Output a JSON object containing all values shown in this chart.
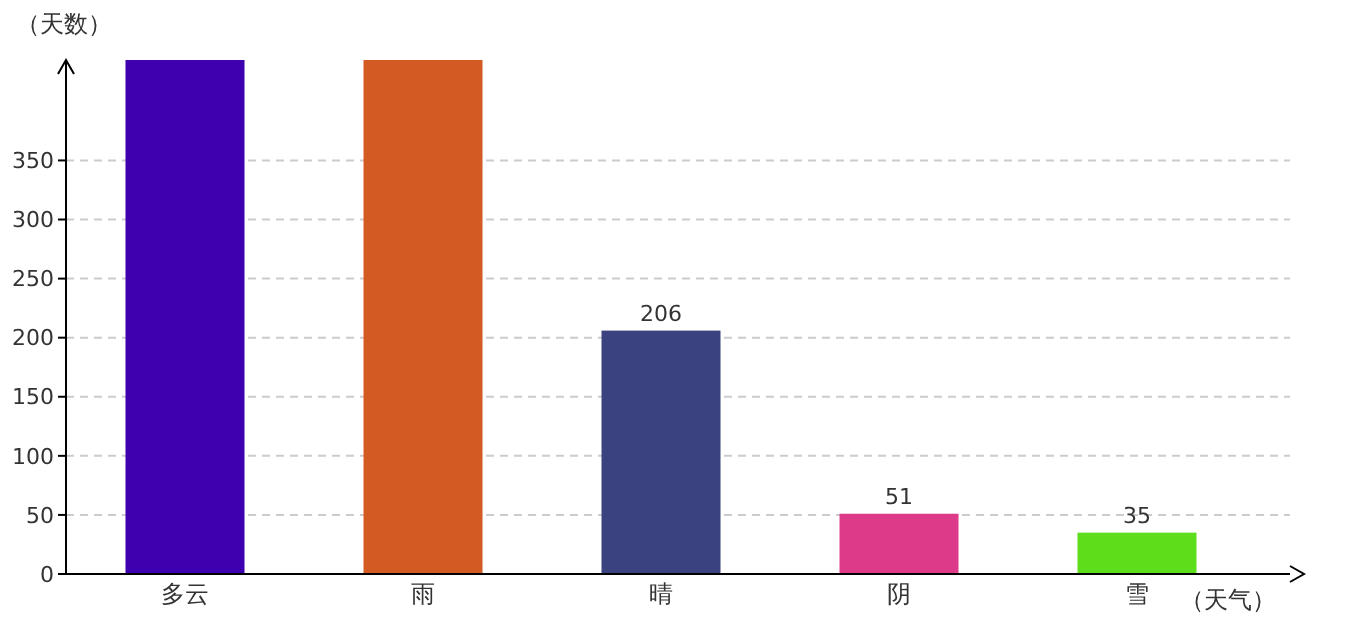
{
  "chart_data": {
    "type": "bar",
    "xlabel": "（天气）",
    "ylabel": "（天数）",
    "categories": [
      "多云",
      "雨",
      "晴",
      "阴",
      "雪"
    ],
    "values": [
      435,
      435,
      206,
      51,
      35
    ],
    "colors": [
      "#3f00b0",
      "#d35a22",
      "#3b4280",
      "#de3a8a",
      "#5edd1a"
    ],
    "value_labels": [
      null,
      null,
      "206",
      "51",
      "35"
    ],
    "ylim": [
      0,
      435
    ],
    "yticks": [
      0,
      50,
      100,
      150,
      200,
      250,
      300,
      350
    ],
    "grid": "y"
  }
}
